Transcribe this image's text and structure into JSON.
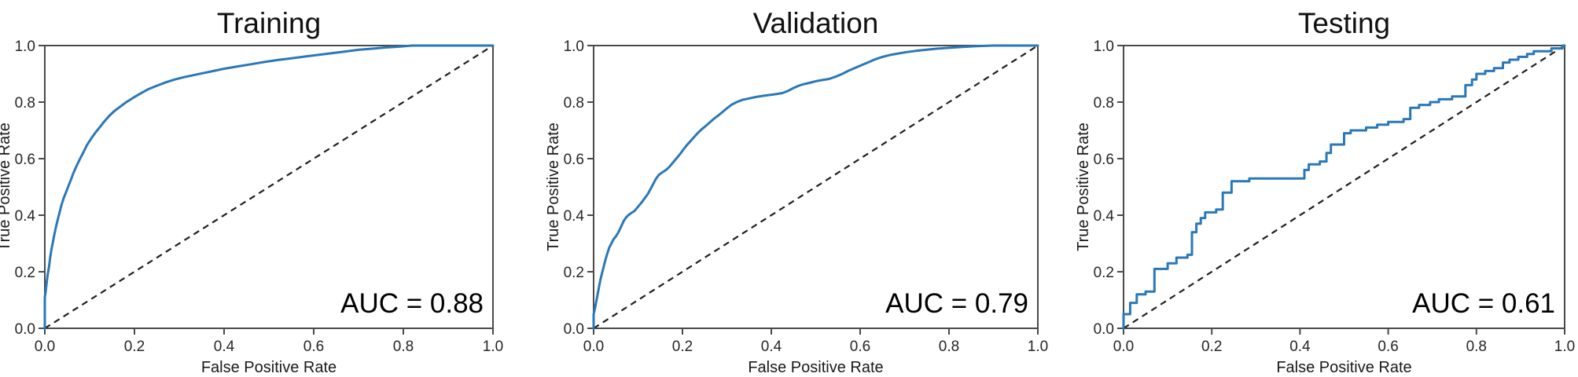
{
  "style": {
    "background": "#ffffff",
    "curve_color": "#2a78b8",
    "diagonal_color": "#1f1f1f",
    "spine_color": "#4a4a4a",
    "tick_color": "#4a4a4a",
    "text_color": "#111111"
  },
  "chart_data": [
    {
      "type": "line",
      "title": "Training",
      "xlabel": "False Positive Rate",
      "ylabel": "True Positive Rate",
      "xlim": [
        0.0,
        1.0
      ],
      "ylim": [
        0.0,
        1.0
      ],
      "xticks": [
        0.0,
        0.2,
        0.4,
        0.6,
        0.8,
        1.0
      ],
      "xtick_labels": [
        "0.0",
        "0.2",
        "0.4",
        "0.6",
        "0.8",
        "1.0"
      ],
      "yticks": [
        0.0,
        0.2,
        0.4,
        0.6,
        0.8,
        1.0
      ],
      "ytick_labels": [
        "0.0",
        "0.2",
        "0.4",
        "0.6",
        "0.8",
        "1.0"
      ],
      "grid": false,
      "legend": "none",
      "annotation": "AUC = 0.88",
      "auc": 0.88,
      "diagonal_reference": true,
      "series": [
        {
          "name": "ROC curve",
          "points": [
            [
              0.0,
              0.0
            ],
            [
              0.0,
              0.11
            ],
            [
              0.002,
              0.13
            ],
            [
              0.004,
              0.16
            ],
            [
              0.006,
              0.185
            ],
            [
              0.008,
              0.205
            ],
            [
              0.01,
              0.225
            ],
            [
              0.012,
              0.25
            ],
            [
              0.015,
              0.28
            ],
            [
              0.018,
              0.305
            ],
            [
              0.021,
              0.33
            ],
            [
              0.025,
              0.36
            ],
            [
              0.029,
              0.385
            ],
            [
              0.033,
              0.41
            ],
            [
              0.037,
              0.435
            ],
            [
              0.042,
              0.46
            ],
            [
              0.047,
              0.48
            ],
            [
              0.052,
              0.5
            ],
            [
              0.058,
              0.525
            ],
            [
              0.064,
              0.55
            ],
            [
              0.071,
              0.575
            ],
            [
              0.078,
              0.598
            ],
            [
              0.086,
              0.622
            ],
            [
              0.094,
              0.648
            ],
            [
              0.103,
              0.67
            ],
            [
              0.112,
              0.69
            ],
            [
              0.122,
              0.71
            ],
            [
              0.132,
              0.73
            ],
            [
              0.143,
              0.75
            ],
            [
              0.155,
              0.768
            ],
            [
              0.168,
              0.784
            ],
            [
              0.182,
              0.8
            ],
            [
              0.197,
              0.815
            ],
            [
              0.213,
              0.83
            ],
            [
              0.23,
              0.845
            ],
            [
              0.25,
              0.858
            ],
            [
              0.27,
              0.87
            ],
            [
              0.29,
              0.88
            ],
            [
              0.31,
              0.888
            ],
            [
              0.34,
              0.898
            ],
            [
              0.37,
              0.908
            ],
            [
              0.4,
              0.918
            ],
            [
              0.43,
              0.926
            ],
            [
              0.46,
              0.934
            ],
            [
              0.49,
              0.942
            ],
            [
              0.52,
              0.949
            ],
            [
              0.55,
              0.955
            ],
            [
              0.58,
              0.961
            ],
            [
              0.61,
              0.967
            ],
            [
              0.64,
              0.973
            ],
            [
              0.67,
              0.979
            ],
            [
              0.7,
              0.985
            ],
            [
              0.73,
              0.989
            ],
            [
              0.76,
              0.993
            ],
            [
              0.79,
              0.996
            ],
            [
              0.82,
              1.0
            ],
            [
              1.0,
              1.0
            ]
          ]
        }
      ]
    },
    {
      "type": "line",
      "title": "Validation",
      "xlabel": "False Positive Rate",
      "ylabel": "True Positive Rate",
      "xlim": [
        0.0,
        1.0
      ],
      "ylim": [
        0.0,
        1.0
      ],
      "xticks": [
        0.0,
        0.2,
        0.4,
        0.6,
        0.8,
        1.0
      ],
      "xtick_labels": [
        "0.0",
        "0.2",
        "0.4",
        "0.6",
        "0.8",
        "1.0"
      ],
      "yticks": [
        0.0,
        0.2,
        0.4,
        0.6,
        0.8,
        1.0
      ],
      "ytick_labels": [
        "0.0",
        "0.2",
        "0.4",
        "0.6",
        "0.8",
        "1.0"
      ],
      "grid": false,
      "legend": "none",
      "annotation": "AUC = 0.79",
      "auc": 0.79,
      "diagonal_reference": true,
      "series": [
        {
          "name": "ROC curve",
          "points": [
            [
              0.0,
              0.0
            ],
            [
              0.0,
              0.05
            ],
            [
              0.003,
              0.07
            ],
            [
              0.006,
              0.095
            ],
            [
              0.009,
              0.12
            ],
            [
              0.012,
              0.145
            ],
            [
              0.015,
              0.17
            ],
            [
              0.019,
              0.195
            ],
            [
              0.023,
              0.22
            ],
            [
              0.027,
              0.245
            ],
            [
              0.031,
              0.265
            ],
            [
              0.035,
              0.285
            ],
            [
              0.04,
              0.3
            ],
            [
              0.045,
              0.315
            ],
            [
              0.05,
              0.325
            ],
            [
              0.056,
              0.34
            ],
            [
              0.062,
              0.36
            ],
            [
              0.068,
              0.38
            ],
            [
              0.073,
              0.392
            ],
            [
              0.078,
              0.4
            ],
            [
              0.085,
              0.408
            ],
            [
              0.092,
              0.415
            ],
            [
              0.1,
              0.43
            ],
            [
              0.108,
              0.445
            ],
            [
              0.115,
              0.46
            ],
            [
              0.122,
              0.475
            ],
            [
              0.128,
              0.492
            ],
            [
              0.134,
              0.51
            ],
            [
              0.14,
              0.528
            ],
            [
              0.147,
              0.543
            ],
            [
              0.155,
              0.552
            ],
            [
              0.163,
              0.56
            ],
            [
              0.17,
              0.57
            ],
            [
              0.178,
              0.585
            ],
            [
              0.186,
              0.6
            ],
            [
              0.194,
              0.615
            ],
            [
              0.202,
              0.632
            ],
            [
              0.21,
              0.648
            ],
            [
              0.218,
              0.662
            ],
            [
              0.226,
              0.676
            ],
            [
              0.234,
              0.69
            ],
            [
              0.242,
              0.702
            ],
            [
              0.251,
              0.714
            ],
            [
              0.26,
              0.726
            ],
            [
              0.27,
              0.74
            ],
            [
              0.28,
              0.752
            ],
            [
              0.29,
              0.765
            ],
            [
              0.3,
              0.778
            ],
            [
              0.31,
              0.79
            ],
            [
              0.322,
              0.8
            ],
            [
              0.335,
              0.808
            ],
            [
              0.35,
              0.813
            ],
            [
              0.365,
              0.818
            ],
            [
              0.38,
              0.822
            ],
            [
              0.395,
              0.825
            ],
            [
              0.41,
              0.828
            ],
            [
              0.425,
              0.832
            ],
            [
              0.438,
              0.84
            ],
            [
              0.45,
              0.85
            ],
            [
              0.462,
              0.858
            ],
            [
              0.474,
              0.864
            ],
            [
              0.486,
              0.868
            ],
            [
              0.5,
              0.874
            ],
            [
              0.515,
              0.878
            ],
            [
              0.53,
              0.882
            ],
            [
              0.545,
              0.89
            ],
            [
              0.56,
              0.9
            ],
            [
              0.575,
              0.912
            ],
            [
              0.59,
              0.922
            ],
            [
              0.605,
              0.932
            ],
            [
              0.62,
              0.942
            ],
            [
              0.635,
              0.952
            ],
            [
              0.65,
              0.96
            ],
            [
              0.668,
              0.967
            ],
            [
              0.686,
              0.972
            ],
            [
              0.705,
              0.977
            ],
            [
              0.725,
              0.981
            ],
            [
              0.748,
              0.985
            ],
            [
              0.772,
              0.989
            ],
            [
              0.8,
              0.992
            ],
            [
              0.83,
              0.995
            ],
            [
              0.862,
              0.998
            ],
            [
              0.9,
              1.0
            ],
            [
              1.0,
              1.0
            ]
          ]
        }
      ]
    },
    {
      "type": "line",
      "title": "Testing",
      "xlabel": "False Positive Rate",
      "ylabel": "True Positive Rate",
      "xlim": [
        0.0,
        1.0
      ],
      "ylim": [
        0.0,
        1.0
      ],
      "xticks": [
        0.0,
        0.2,
        0.4,
        0.6,
        0.8,
        1.0
      ],
      "xtick_labels": [
        "0.0",
        "0.2",
        "0.4",
        "0.6",
        "0.8",
        "1.0"
      ],
      "yticks": [
        0.0,
        0.2,
        0.4,
        0.6,
        0.8,
        1.0
      ],
      "ytick_labels": [
        "0.0",
        "0.2",
        "0.4",
        "0.6",
        "0.8",
        "1.0"
      ],
      "grid": false,
      "legend": "none",
      "annotation": "AUC = 0.61",
      "auc": 0.61,
      "diagonal_reference": true,
      "series": [
        {
          "name": "ROC curve",
          "points": [
            [
              0.0,
              0.0
            ],
            [
              0.0,
              0.05
            ],
            [
              0.015,
              0.05
            ],
            [
              0.015,
              0.09
            ],
            [
              0.03,
              0.09
            ],
            [
              0.03,
              0.12
            ],
            [
              0.05,
              0.12
            ],
            [
              0.05,
              0.13
            ],
            [
              0.07,
              0.13
            ],
            [
              0.07,
              0.21
            ],
            [
              0.1,
              0.21
            ],
            [
              0.1,
              0.23
            ],
            [
              0.12,
              0.23
            ],
            [
              0.12,
              0.25
            ],
            [
              0.145,
              0.25
            ],
            [
              0.145,
              0.26
            ],
            [
              0.155,
              0.26
            ],
            [
              0.155,
              0.34
            ],
            [
              0.165,
              0.34
            ],
            [
              0.165,
              0.37
            ],
            [
              0.175,
              0.37
            ],
            [
              0.175,
              0.39
            ],
            [
              0.185,
              0.39
            ],
            [
              0.185,
              0.41
            ],
            [
              0.21,
              0.41
            ],
            [
              0.21,
              0.42
            ],
            [
              0.225,
              0.42
            ],
            [
              0.225,
              0.48
            ],
            [
              0.245,
              0.48
            ],
            [
              0.245,
              0.52
            ],
            [
              0.285,
              0.52
            ],
            [
              0.285,
              0.53
            ],
            [
              0.41,
              0.53
            ],
            [
              0.41,
              0.56
            ],
            [
              0.42,
              0.56
            ],
            [
              0.42,
              0.58
            ],
            [
              0.445,
              0.58
            ],
            [
              0.445,
              0.59
            ],
            [
              0.46,
              0.59
            ],
            [
              0.46,
              0.62
            ],
            [
              0.47,
              0.62
            ],
            [
              0.47,
              0.65
            ],
            [
              0.5,
              0.65
            ],
            [
              0.5,
              0.69
            ],
            [
              0.515,
              0.69
            ],
            [
              0.515,
              0.7
            ],
            [
              0.55,
              0.7
            ],
            [
              0.55,
              0.71
            ],
            [
              0.575,
              0.71
            ],
            [
              0.575,
              0.72
            ],
            [
              0.6,
              0.72
            ],
            [
              0.6,
              0.73
            ],
            [
              0.635,
              0.73
            ],
            [
              0.635,
              0.74
            ],
            [
              0.65,
              0.74
            ],
            [
              0.65,
              0.78
            ],
            [
              0.67,
              0.78
            ],
            [
              0.67,
              0.79
            ],
            [
              0.695,
              0.79
            ],
            [
              0.695,
              0.8
            ],
            [
              0.715,
              0.8
            ],
            [
              0.715,
              0.81
            ],
            [
              0.745,
              0.81
            ],
            [
              0.745,
              0.82
            ],
            [
              0.775,
              0.82
            ],
            [
              0.775,
              0.86
            ],
            [
              0.79,
              0.86
            ],
            [
              0.79,
              0.88
            ],
            [
              0.8,
              0.88
            ],
            [
              0.8,
              0.9
            ],
            [
              0.82,
              0.9
            ],
            [
              0.82,
              0.91
            ],
            [
              0.84,
              0.91
            ],
            [
              0.84,
              0.92
            ],
            [
              0.86,
              0.92
            ],
            [
              0.86,
              0.94
            ],
            [
              0.875,
              0.94
            ],
            [
              0.875,
              0.95
            ],
            [
              0.895,
              0.95
            ],
            [
              0.895,
              0.96
            ],
            [
              0.915,
              0.96
            ],
            [
              0.915,
              0.97
            ],
            [
              0.93,
              0.97
            ],
            [
              0.93,
              0.98
            ],
            [
              0.97,
              0.98
            ],
            [
              0.97,
              0.99
            ],
            [
              0.995,
              0.99
            ],
            [
              0.995,
              1.0
            ],
            [
              1.0,
              1.0
            ]
          ]
        }
      ]
    }
  ]
}
